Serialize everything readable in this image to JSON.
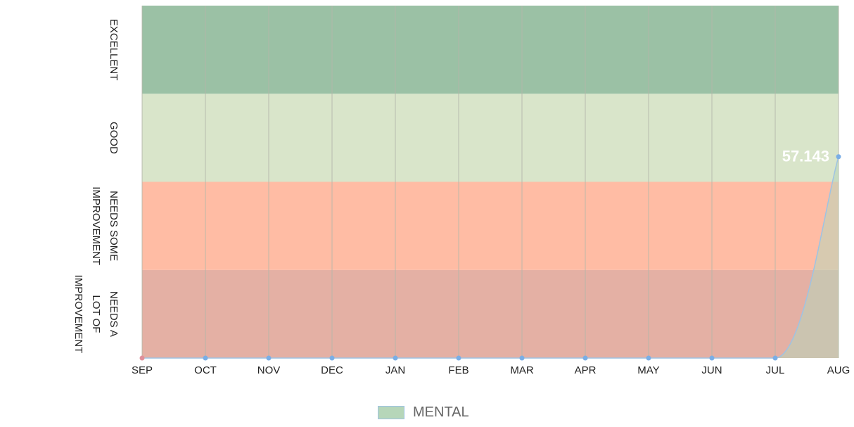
{
  "chart_data": {
    "type": "area",
    "categories": [
      "SEP",
      "OCT",
      "NOV",
      "DEC",
      "JAN",
      "FEB",
      "MAR",
      "APR",
      "MAY",
      "JUN",
      "JUL",
      "AUG"
    ],
    "series": [
      {
        "name": "MENTAL",
        "values": [
          0,
          0,
          0,
          0,
          0,
          0,
          0,
          0,
          0,
          0,
          0,
          57.143
        ]
      }
    ],
    "ylim": [
      0,
      100
    ],
    "bands": [
      {
        "label": "NEEDS A\nLOT OF\nIMPROVEMENT",
        "from": 0,
        "to": 25,
        "color": "#e4b0a4"
      },
      {
        "label": "NEEDS SOME\nIMPROVEMENT",
        "from": 25,
        "to": 50,
        "color": "#ffbca4"
      },
      {
        "label": "GOOD",
        "from": 50,
        "to": 75,
        "color": "#d9e5ca"
      },
      {
        "label": "EXCELLENT",
        "from": 75,
        "to": 100,
        "color": "#9bc1a5"
      }
    ],
    "data_labels": [
      {
        "index": 11,
        "text": "57.143"
      }
    ],
    "grid": true,
    "legend_position": "bottom-center",
    "colors": {
      "series_fill": "#b6d6b9",
      "series_line": "#9ec3e3",
      "point": "#7aaee6",
      "first_point": "#e0909a",
      "gridline": "#b5b8aa"
    }
  },
  "legend": {
    "label": "MENTAL"
  }
}
